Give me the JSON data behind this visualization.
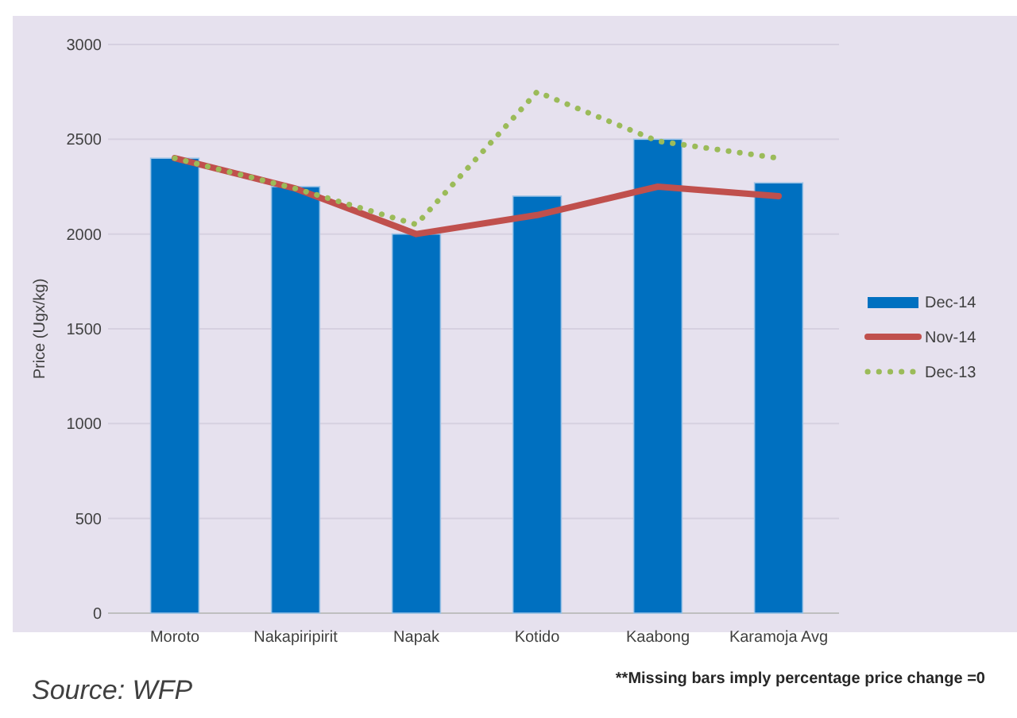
{
  "chart_data": {
    "type": "bar",
    "ylabel": "Price (Ugx/kg)",
    "categories": [
      "Moroto",
      "Nakapiripirit",
      "Napak",
      "Kotido",
      "Kaabong",
      "Karamoja Avg"
    ],
    "series": [
      {
        "name": "Dec-14",
        "color": "#0070c0",
        "values": [
          2400,
          2250,
          2000,
          2200,
          2500,
          2270
        ]
      },
      {
        "name": "Nov-14",
        "type": "line",
        "color": "#c0504d",
        "line_style": "solid",
        "values": [
          2400,
          2240,
          2000,
          2100,
          2250,
          2200
        ]
      },
      {
        "name": "Dec-13",
        "type": "line",
        "color": "#9bbb59",
        "line_style": "dotted",
        "values": [
          2400,
          2240,
          2050,
          2750,
          2490,
          2400
        ]
      }
    ],
    "ylim": [
      0,
      3000
    ],
    "yticks": [
      0,
      500,
      1000,
      1500,
      2000,
      2500,
      3000
    ],
    "grid": "y",
    "legend": "right",
    "annotations": [
      "Source: WFP",
      "**Missing bars imply percentage price change =0"
    ]
  }
}
